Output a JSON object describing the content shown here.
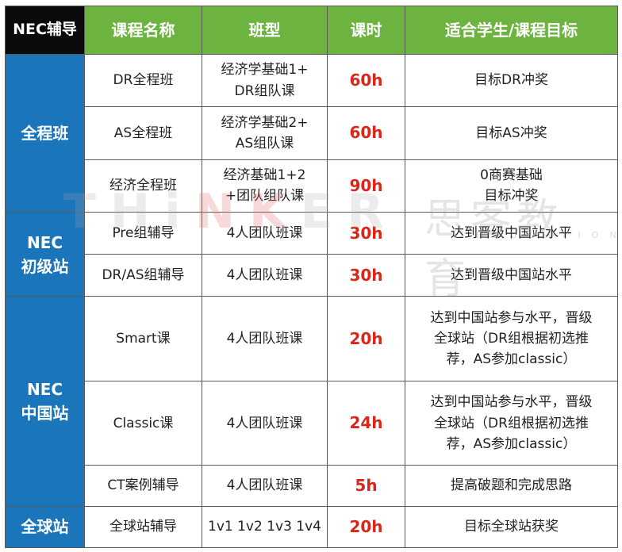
{
  "header": {
    "corner": "NEC辅导",
    "col_course": "课程名称",
    "col_class": "班型",
    "col_hours": "课时",
    "col_target": "适合学生/课程目标"
  },
  "groups": [
    {
      "category": "全程班",
      "rows": [
        {
          "course": "DR全程班",
          "class_type": "经济学基础1+\nDR组队课",
          "hours": "60h",
          "target": "目标DR冲奖"
        },
        {
          "course": "AS全程班",
          "class_type": "经济学基础2+\nAS组队课",
          "hours": "60h",
          "target": "目标AS冲奖"
        },
        {
          "course": "经济全程班",
          "class_type": "经济基础1+2\n+团队组队课",
          "hours": "90h",
          "target": "0商赛基础\n目标冲奖"
        }
      ]
    },
    {
      "category": "NEC\n初级站",
      "rows": [
        {
          "course": "Pre组辅导",
          "class_type": "4人团队班课",
          "hours": "30h",
          "target": "达到晋级中国站水平"
        },
        {
          "course": "DR/AS组辅导",
          "class_type": "4人团队班课",
          "hours": "30h",
          "target": "达到晋级中国站水平"
        }
      ]
    },
    {
      "category": "NEC\n中国站",
      "rows": [
        {
          "course": "Smart课",
          "class_type": "4人团队班课",
          "hours": "20h",
          "target": "达到中国站参与水平，晋级\n全球站（DR组根据初选推\n荐，AS参加classic）"
        },
        {
          "course": "Classic课",
          "class_type": "4人团队班课",
          "hours": "24h",
          "target": "达到中国站参与水平，晋级\n全球站（DR组根据初选推\n荐，AS参加classic）"
        },
        {
          "course": "CT案例辅导",
          "class_type": "4人团队班课",
          "hours": "5h",
          "target": "提高破题和完成思路"
        }
      ]
    },
    {
      "category": "全球站",
      "rows": [
        {
          "course": "全球站辅导",
          "class_type": "1v1 1v2 1v3 1v4",
          "hours": "20h",
          "target": "目标全球站获奖"
        }
      ]
    }
  ],
  "watermark": {
    "brand_en_a": "THi",
    "brand_en_b": "NK",
    "brand_en_c": "ER",
    "brand_cn": "思客教育",
    "brand_sub": "EDUCATION"
  },
  "colors": {
    "header_green": "#6db33f",
    "category_blue": "#1b75bb",
    "hours_red": "#d8271c",
    "corner_black": "#0a0a0a"
  }
}
